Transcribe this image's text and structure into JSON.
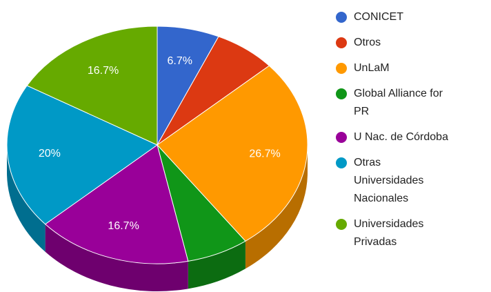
{
  "chart_data": {
    "type": "pie3d",
    "categories": [
      "CONICET",
      "Otros",
      "UnLaM",
      "Global Alliance for PR",
      "U Nac. de Córdoba",
      "Otras Universidades Nacionales",
      "Universidades Privadas"
    ],
    "values": [
      6.7,
      6.7,
      26.7,
      6.7,
      16.7,
      20,
      16.7
    ],
    "value_labels": [
      "6.7%",
      null,
      "26.7%",
      null,
      "16.7%",
      "20%",
      "16.7%"
    ],
    "colors": [
      "#3366cc",
      "#dc3912",
      "#ff9900",
      "#109618",
      "#990099",
      "#0099c6",
      "#66aa00"
    ],
    "legend": "right"
  }
}
